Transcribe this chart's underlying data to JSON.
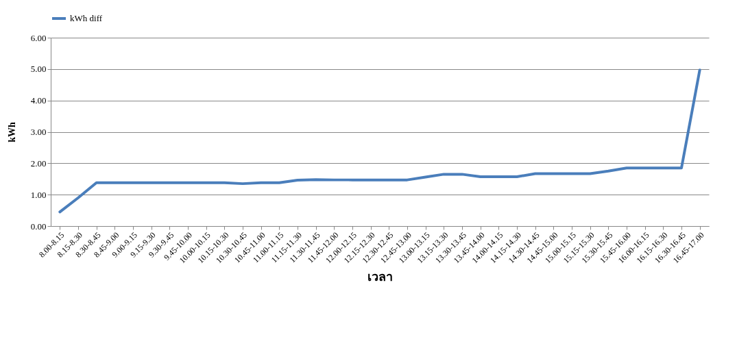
{
  "chart_data": {
    "type": "line",
    "xlabel": "เวลา",
    "ylabel": "kWh",
    "categories": [
      "8.00-8.15",
      "8.15-8.30",
      "8.30-8.45",
      "8.45-9.00",
      "9.00-9.15",
      "9.15-9.30",
      "9.30-9.45",
      "9.45-10.00",
      "10.00-10.15",
      "10.15-10.30",
      "10.30-10.45",
      "10.45-11.00",
      "11.00-11.15",
      "11.15-11.30",
      "11.30-11.45",
      "11.45-12.00",
      "12.00-12.15",
      "12.15-12.30",
      "12.30-12.45",
      "12.45-13.00",
      "13.00-13.15",
      "13.15-13.30",
      "13.30-13.45",
      "13.45-14.00",
      "14.00-14.15",
      "14.15-14.30",
      "14.30-14.45",
      "14.45-15.00",
      "15.00-15.15",
      "15.15-15.30",
      "15.30-15.45",
      "15.45-16.00",
      "16.00-16.15",
      "16.15-16.30",
      "16.30-16.45",
      "16.45-17.00"
    ],
    "series": [
      {
        "name": "kWh diff",
        "color": "#4a7ebb",
        "values": [
          0.45,
          0.9,
          1.38,
          1.38,
          1.38,
          1.38,
          1.38,
          1.38,
          1.38,
          1.38,
          1.35,
          1.38,
          1.38,
          1.46,
          1.48,
          1.47,
          1.47,
          1.47,
          1.47,
          1.47,
          1.56,
          1.65,
          1.65,
          1.57,
          1.57,
          1.57,
          1.67,
          1.67,
          1.67,
          1.67,
          1.75,
          1.85,
          1.85,
          1.85,
          1.85,
          4.97
        ]
      }
    ],
    "ylim": [
      0,
      6
    ],
    "yticks": [
      {
        "value": 0,
        "label": "0.00"
      },
      {
        "value": 1,
        "label": "1.00"
      },
      {
        "value": 2,
        "label": "2.00"
      },
      {
        "value": 3,
        "label": "3.00"
      },
      {
        "value": 4,
        "label": "4.00"
      },
      {
        "value": 5,
        "label": "5.00"
      },
      {
        "value": 6,
        "label": "6.00"
      }
    ],
    "grid": "y",
    "legend": "top",
    "marker": "none",
    "line_style": "solid"
  }
}
